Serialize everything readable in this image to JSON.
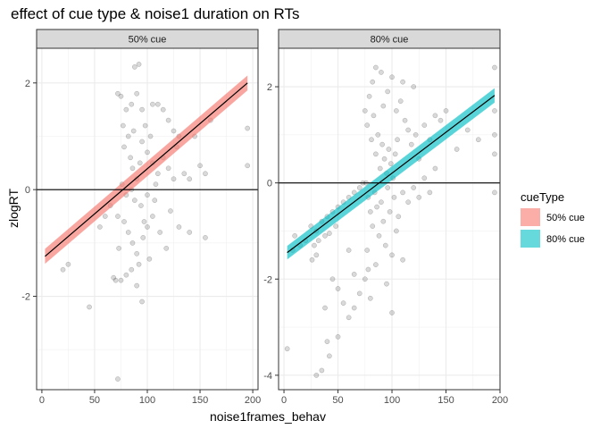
{
  "chart_data": {
    "type": "scatter",
    "title": "effect of cue type & noise1 duration on RTs",
    "xlabel": "noise1frames_behav",
    "ylabel": "zlogRT",
    "legend": {
      "title": "cueType",
      "position": "right",
      "entries": [
        {
          "label": "50% cue",
          "color": "#F8766D"
        },
        {
          "label": "80% cue",
          "color": "#00BFC4"
        }
      ]
    },
    "reference_line": {
      "y": 0,
      "color": "#000000"
    },
    "grid": true,
    "panels": [
      {
        "strip": "50% cue",
        "xlim": [
          -5,
          205
        ],
        "ylim": [
          -3.75,
          2.65
        ],
        "xticks": [
          0,
          50,
          100,
          150,
          200
        ],
        "yticks": [
          2,
          0,
          -2
        ],
        "point_color": "#000000",
        "point_alpha": 0.15,
        "points": [
          {
            "x": 72,
            "y": 1.8
          },
          {
            "x": 75,
            "y": 1.75
          },
          {
            "x": 80,
            "y": 1.5
          },
          {
            "x": 85,
            "y": 1.6
          },
          {
            "x": 90,
            "y": 1.8
          },
          {
            "x": 95,
            "y": 1.5
          },
          {
            "x": 105,
            "y": 1.6
          },
          {
            "x": 110,
            "y": 1.6
          },
          {
            "x": 115,
            "y": 1.5
          },
          {
            "x": 120,
            "y": 1.3
          },
          {
            "x": 125,
            "y": 1.1
          },
          {
            "x": 88,
            "y": 2.3
          },
          {
            "x": 92,
            "y": 2.35
          },
          {
            "x": 130,
            "y": 1.0
          },
          {
            "x": 145,
            "y": 1.0
          },
          {
            "x": 160,
            "y": 1.3
          },
          {
            "x": 195,
            "y": 1.15
          },
          {
            "x": 195,
            "y": 0.45
          },
          {
            "x": 77,
            "y": 1.2
          },
          {
            "x": 82,
            "y": 1.0
          },
          {
            "x": 78,
            "y": 0.8
          },
          {
            "x": 84,
            "y": 0.6
          },
          {
            "x": 86,
            "y": 0.4
          },
          {
            "x": 90,
            "y": 0.2
          },
          {
            "x": 95,
            "y": 0.9
          },
          {
            "x": 100,
            "y": 0.7
          },
          {
            "x": 105,
            "y": 0.5
          },
          {
            "x": 110,
            "y": 0.3
          },
          {
            "x": 76,
            "y": 0.1
          },
          {
            "x": 80,
            "y": -0.1
          },
          {
            "x": 85,
            "y": 0.0
          },
          {
            "x": 88,
            "y": -0.2
          },
          {
            "x": 94,
            "y": -0.3
          },
          {
            "x": 100,
            "y": -0.1
          },
          {
            "x": 108,
            "y": 0.1
          },
          {
            "x": 115,
            "y": 0.6
          },
          {
            "x": 120,
            "y": 0.4
          },
          {
            "x": 125,
            "y": 0.2
          },
          {
            "x": 135,
            "y": 0.3
          },
          {
            "x": 140,
            "y": 0.2
          },
          {
            "x": 150,
            "y": 0.45
          },
          {
            "x": 155,
            "y": 0.3
          },
          {
            "x": 72,
            "y": -0.5
          },
          {
            "x": 78,
            "y": -0.6
          },
          {
            "x": 82,
            "y": -0.8
          },
          {
            "x": 86,
            "y": -1.0
          },
          {
            "x": 90,
            "y": -1.2
          },
          {
            "x": 92,
            "y": -1.4
          },
          {
            "x": 96,
            "y": -0.9
          },
          {
            "x": 100,
            "y": -0.7
          },
          {
            "x": 105,
            "y": -0.5
          },
          {
            "x": 112,
            "y": -0.8
          },
          {
            "x": 118,
            "y": -1.1
          },
          {
            "x": 130,
            "y": -0.7
          },
          {
            "x": 140,
            "y": -0.8
          },
          {
            "x": 155,
            "y": -0.9
          },
          {
            "x": 75,
            "y": -1.7
          },
          {
            "x": 80,
            "y": -1.6
          },
          {
            "x": 85,
            "y": -1.5
          },
          {
            "x": 90,
            "y": -1.8
          },
          {
            "x": 95,
            "y": -2.1
          },
          {
            "x": 68,
            "y": -1.65
          },
          {
            "x": 70,
            "y": -1.7
          },
          {
            "x": 45,
            "y": -2.2
          },
          {
            "x": 72,
            "y": -3.55
          },
          {
            "x": 20,
            "y": -1.5
          },
          {
            "x": 25,
            "y": -1.4
          },
          {
            "x": 55,
            "y": -0.7
          },
          {
            "x": 60,
            "y": -0.5
          },
          {
            "x": 65,
            "y": -0.3
          },
          {
            "x": 73,
            "y": -1.1
          },
          {
            "x": 98,
            "y": 1.2
          },
          {
            "x": 102,
            "y": -1.3
          },
          {
            "x": 122,
            "y": -0.4
          },
          {
            "x": 128,
            "y": 0.8
          },
          {
            "x": 87,
            "y": 1.1
          },
          {
            "x": 93,
            "y": 0.5
          },
          {
            "x": 97,
            "y": -0.6
          },
          {
            "x": 103,
            "y": 1.0
          },
          {
            "x": 107,
            "y": -0.2
          }
        ],
        "fit": {
          "x": [
            3,
            195
          ],
          "y": [
            -1.25,
            2.0
          ],
          "ci": [
            0.14,
            0.14
          ],
          "fill": "#F8766D"
        }
      },
      {
        "strip": "80% cue",
        "xlim": [
          -5,
          200
        ],
        "ylim": [
          -4.3,
          2.8
        ],
        "xticks": [
          0,
          50,
          100,
          150,
          200
        ],
        "yticks": [
          2,
          0,
          -2,
          -4
        ],
        "point_color": "#000000",
        "point_alpha": 0.15,
        "points": [
          {
            "x": 75,
            "y": 1.5
          },
          {
            "x": 77,
            "y": 1.2
          },
          {
            "x": 79,
            "y": 1.8
          },
          {
            "x": 81,
            "y": 0.9
          },
          {
            "x": 83,
            "y": 1.4
          },
          {
            "x": 85,
            "y": 0.6
          },
          {
            "x": 87,
            "y": 1.0
          },
          {
            "x": 89,
            "y": 0.3
          },
          {
            "x": 91,
            "y": 0.8
          },
          {
            "x": 93,
            "y": 0.5
          },
          {
            "x": 95,
            "y": 0.2
          },
          {
            "x": 97,
            "y": 0.7
          },
          {
            "x": 99,
            "y": 0.4
          },
          {
            "x": 101,
            "y": 0.1
          },
          {
            "x": 103,
            "y": 0.6
          },
          {
            "x": 105,
            "y": 0.9
          },
          {
            "x": 76,
            "y": 0.0
          },
          {
            "x": 78,
            "y": -0.3
          },
          {
            "x": 80,
            "y": -0.6
          },
          {
            "x": 82,
            "y": -0.9
          },
          {
            "x": 84,
            "y": -0.2
          },
          {
            "x": 86,
            "y": -0.5
          },
          {
            "x": 88,
            "y": -1.1
          },
          {
            "x": 90,
            "y": -0.4
          },
          {
            "x": 92,
            "y": -0.8
          },
          {
            "x": 94,
            "y": -1.3
          },
          {
            "x": 96,
            "y": -0.1
          },
          {
            "x": 98,
            "y": -0.6
          },
          {
            "x": 100,
            "y": -1.5
          },
          {
            "x": 102,
            "y": -0.3
          },
          {
            "x": 104,
            "y": -1.0
          },
          {
            "x": 106,
            "y": -0.7
          },
          {
            "x": 85,
            "y": 2.4
          },
          {
            "x": 90,
            "y": 2.3
          },
          {
            "x": 100,
            "y": 2.2
          },
          {
            "x": 110,
            "y": 2.1
          },
          {
            "x": 120,
            "y": 2.0
          },
          {
            "x": 108,
            "y": 1.7
          },
          {
            "x": 112,
            "y": 1.3
          },
          {
            "x": 115,
            "y": 1.1
          },
          {
            "x": 118,
            "y": 0.8
          },
          {
            "x": 122,
            "y": 1.0
          },
          {
            "x": 125,
            "y": 0.5
          },
          {
            "x": 130,
            "y": 1.2
          },
          {
            "x": 135,
            "y": 0.9
          },
          {
            "x": 140,
            "y": 1.4
          },
          {
            "x": 145,
            "y": 1.3
          },
          {
            "x": 150,
            "y": 1.5
          },
          {
            "x": 110,
            "y": -0.2
          },
          {
            "x": 115,
            "y": -0.4
          },
          {
            "x": 120,
            "y": -0.1
          },
          {
            "x": 125,
            "y": -0.3
          },
          {
            "x": 130,
            "y": 0.1
          },
          {
            "x": 135,
            "y": -0.2
          },
          {
            "x": 140,
            "y": 0.3
          },
          {
            "x": 195,
            "y": 2.4
          },
          {
            "x": 195,
            "y": 1.5
          },
          {
            "x": 195,
            "y": 1.0
          },
          {
            "x": 195,
            "y": 0.6
          },
          {
            "x": 195,
            "y": -0.2
          },
          {
            "x": 170,
            "y": 1.1
          },
          {
            "x": 180,
            "y": 0.9
          },
          {
            "x": 160,
            "y": 0.7
          },
          {
            "x": 25,
            "y": -0.9
          },
          {
            "x": 30,
            "y": -1.0
          },
          {
            "x": 35,
            "y": -0.8
          },
          {
            "x": 40,
            "y": -0.7
          },
          {
            "x": 45,
            "y": -0.6
          },
          {
            "x": 50,
            "y": -0.5
          },
          {
            "x": 55,
            "y": -0.4
          },
          {
            "x": 60,
            "y": -0.3
          },
          {
            "x": 65,
            "y": -0.2
          },
          {
            "x": 28,
            "y": -1.3
          },
          {
            "x": 32,
            "y": -1.2
          },
          {
            "x": 38,
            "y": -1.1
          },
          {
            "x": 42,
            "y": -1.05
          },
          {
            "x": 48,
            "y": -0.9
          },
          {
            "x": 70,
            "y": -0.1
          },
          {
            "x": 73,
            "y": 0.0
          },
          {
            "x": 20,
            "y": -1.2
          },
          {
            "x": 26,
            "y": -1.6
          },
          {
            "x": 30,
            "y": -1.5
          },
          {
            "x": 45,
            "y": -2.0
          },
          {
            "x": 50,
            "y": -2.2
          },
          {
            "x": 55,
            "y": -2.5
          },
          {
            "x": 60,
            "y": -2.8
          },
          {
            "x": 65,
            "y": -2.6
          },
          {
            "x": 70,
            "y": -2.3
          },
          {
            "x": 75,
            "y": -2.0
          },
          {
            "x": 78,
            "y": -1.8
          },
          {
            "x": 80,
            "y": -2.4
          },
          {
            "x": 85,
            "y": -1.7
          },
          {
            "x": 40,
            "y": -3.3
          },
          {
            "x": 42,
            "y": -3.6
          },
          {
            "x": 35,
            "y": -3.9
          },
          {
            "x": 30,
            "y": -4.0
          },
          {
            "x": 38,
            "y": -2.6
          },
          {
            "x": 50,
            "y": -3.2
          },
          {
            "x": 3,
            "y": -3.45
          },
          {
            "x": 10,
            "y": -1.1
          },
          {
            "x": 8,
            "y": -1.4
          },
          {
            "x": 15,
            "y": -1.3
          },
          {
            "x": 95,
            "y": -2.1
          },
          {
            "x": 100,
            "y": -2.7
          },
          {
            "x": 110,
            "y": -1.6
          },
          {
            "x": 60,
            "y": -1.4
          },
          {
            "x": 65,
            "y": -1.9
          },
          {
            "x": 92,
            "y": 1.6
          },
          {
            "x": 96,
            "y": 1.9
          },
          {
            "x": 104,
            "y": 1.5
          },
          {
            "x": 82,
            "y": 2.1
          },
          {
            "x": 77,
            "y": -1.4
          }
        ],
        "fit": {
          "x": [
            3,
            195
          ],
          "y": [
            -1.45,
            1.82
          ],
          "ci": [
            0.14,
            0.15
          ],
          "fill": "#00BFC4"
        }
      }
    ]
  }
}
